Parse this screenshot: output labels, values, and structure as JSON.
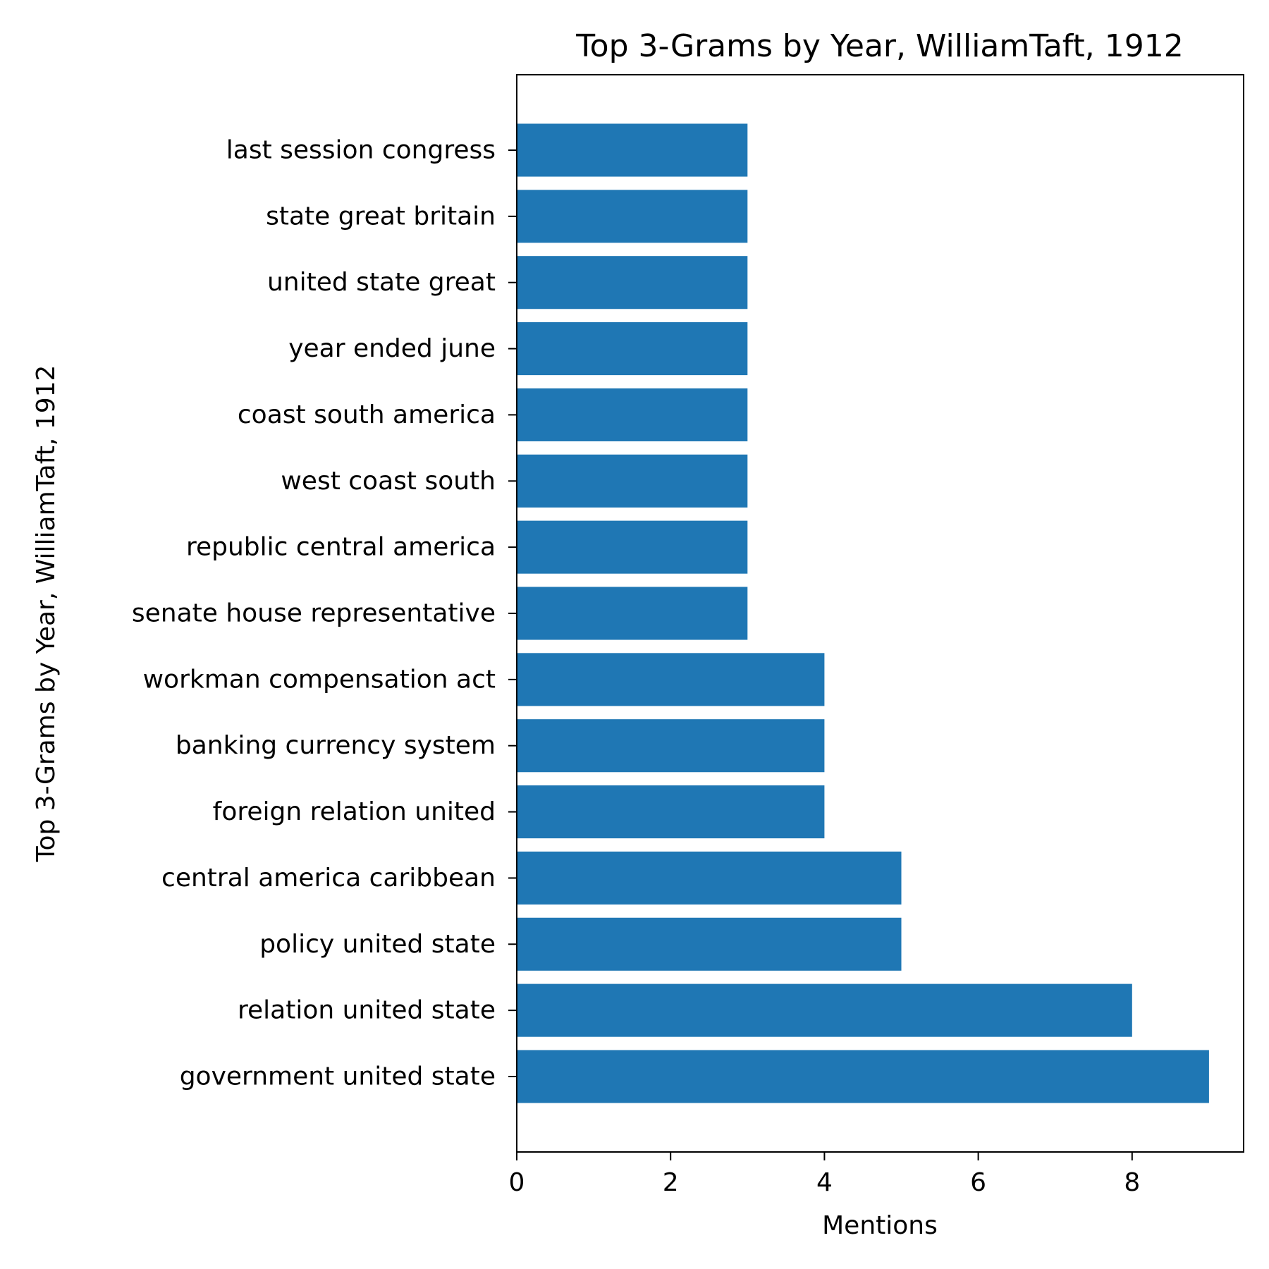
{
  "chart_data": {
    "type": "bar",
    "orientation": "horizontal",
    "title": "Top 3-Grams by Year, WilliamTaft, 1912",
    "xlabel": "Mentions",
    "ylabel": "Top 3-Grams by Year, WilliamTaft, 1912",
    "categories": [
      "government united state",
      "relation united state",
      "policy united state",
      "central america caribbean",
      "foreign relation united",
      "banking currency system",
      "workman compensation act",
      "senate house representative",
      "republic central america",
      "west coast south",
      "coast south america",
      "year ended june",
      "united state great",
      "state great britain",
      "last session congress"
    ],
    "values": [
      9,
      8,
      5,
      5,
      4,
      4,
      4,
      3,
      3,
      3,
      3,
      3,
      3,
      3,
      3
    ],
    "xlim": [
      0,
      9.45
    ],
    "xticks": [
      "0",
      "2",
      "4",
      "6",
      "8"
    ],
    "grid": false,
    "legend": "none",
    "bar_color": "#1f77b4"
  }
}
